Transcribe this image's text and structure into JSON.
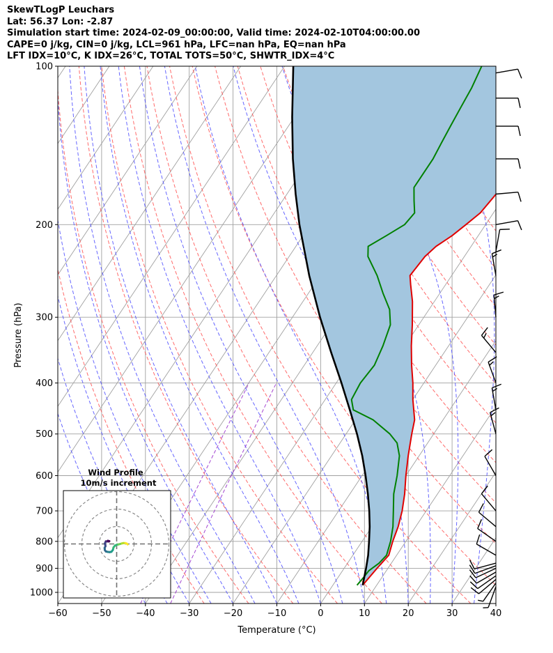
{
  "header": {
    "title": "SkewTLogP Leuchars",
    "location": "Lat: 56.37   Lon: -2.87",
    "simulation": "Simulation start time: 2024-02-09_00:00:00, Valid time: 2024-02-10T04:00:00.00",
    "cape_line": "CAPE=0 j/kg, CIN=0 j/kg, LCL=961 hPa, LFC=nan hPa, EQ=nan hPa",
    "index_line": "LFT IDX=10°C, K IDX=26°C, TOTAL TOTS=50°C, SHWTR_IDX=4°C"
  },
  "chart_data": [
    {
      "type": "line",
      "subtype": "skew-T log-P",
      "xlabel": "Temperature (°C)",
      "ylabel": "Pressure (hPa)",
      "xlim": [
        -60,
        40
      ],
      "ylim": [
        1050,
        100
      ],
      "y_scale": "log",
      "x_ticks": [
        "−60",
        "−50",
        "−40",
        "−30",
        "−20",
        "−10",
        "0",
        "10",
        "20",
        "30",
        "40"
      ],
      "y_ticks": [
        "1000",
        "900",
        "800",
        "700",
        "600",
        "500",
        "400",
        "300",
        "200",
        "100"
      ],
      "grid": true,
      "series": [
        {
          "role": "temperature",
          "color": "#e00000",
          "points": [
            [
              969,
              6.8
            ],
            [
              900,
              7.5
            ],
            [
              850,
              8.2
            ],
            [
              800,
              7.0
            ],
            [
              750,
              6.0
            ],
            [
              700,
              4.5
            ],
            [
              650,
              2.5
            ],
            [
              600,
              0.0
            ],
            [
              550,
              -2.5
            ],
            [
              500,
              -5.0
            ],
            [
              470,
              -6.5
            ],
            [
              430,
              -10.0
            ],
            [
              400,
              -12.5
            ],
            [
              370,
              -15.5
            ],
            [
              340,
              -18.5
            ],
            [
              310,
              -21.5
            ],
            [
              280,
              -25.0
            ],
            [
              260,
              -28.0
            ],
            [
              250,
              -29.5
            ],
            [
              230,
              -29.0
            ],
            [
              220,
              -28.0
            ],
            [
              210,
              -26.0
            ],
            [
              200,
              -24.5
            ],
            [
              190,
              -23.0
            ],
            [
              180,
              -22.5
            ],
            [
              170,
              -22.0
            ],
            [
              160,
              -21.5
            ],
            [
              150,
              -21.0
            ],
            [
              140,
              -21.5
            ],
            [
              130,
              -21.5
            ],
            [
              120,
              -21.5
            ],
            [
              110,
              -21.5
            ],
            [
              100,
              -21.5
            ]
          ]
        },
        {
          "role": "dewpoint",
          "color": "#008000",
          "points": [
            [
              969,
              5.5
            ],
            [
              940,
              5.8
            ],
            [
              910,
              6.0
            ],
            [
              880,
              7.2
            ],
            [
              850,
              7.7
            ],
            [
              800,
              6.5
            ],
            [
              750,
              4.8
            ],
            [
              700,
              2.5
            ],
            [
              650,
              0.0
            ],
            [
              600,
              -2.0
            ],
            [
              550,
              -4.5
            ],
            [
              520,
              -7.0
            ],
            [
              500,
              -10.0
            ],
            [
              470,
              -16.0
            ],
            [
              450,
              -22.0
            ],
            [
              430,
              -24.0
            ],
            [
              400,
              -24.5
            ],
            [
              370,
              -24.0
            ],
            [
              340,
              -25.0
            ],
            [
              310,
              -26.5
            ],
            [
              290,
              -29.0
            ],
            [
              270,
              -33.0
            ],
            [
              250,
              -37.0
            ],
            [
              230,
              -42.0
            ],
            [
              220,
              -43.5
            ],
            [
              210,
              -41.0
            ],
            [
              200,
              -38.5
            ],
            [
              190,
              -38.0
            ],
            [
              180,
              -40.0
            ],
            [
              170,
              -42.0
            ],
            [
              160,
              -42.0
            ],
            [
              150,
              -42.0
            ],
            [
              140,
              -42.5
            ],
            [
              130,
              -43.0
            ],
            [
              120,
              -43.5
            ],
            [
              110,
              -44.0
            ],
            [
              100,
              -45.0
            ]
          ]
        },
        {
          "role": "parcel",
          "color": "#000000",
          "points": [
            [
              969,
              6.8
            ],
            [
              900,
              5.0
            ],
            [
              850,
              3.5
            ],
            [
              800,
              1.6
            ],
            [
              750,
              -0.5
            ],
            [
              700,
              -3.0
            ],
            [
              650,
              -5.9
            ],
            [
              600,
              -9.2
            ],
            [
              550,
              -13.0
            ],
            [
              500,
              -17.5
            ],
            [
              450,
              -22.8
            ],
            [
              400,
              -28.8
            ],
            [
              350,
              -35.8
            ],
            [
              300,
              -43.7
            ],
            [
              250,
              -52.5
            ],
            [
              200,
              -62.5
            ],
            [
              175,
              -68.0
            ],
            [
              150,
              -74.0
            ],
            [
              125,
              -80.5
            ],
            [
              100,
              -88.0
            ]
          ]
        }
      ],
      "background_lines": {
        "dry_adiabat_color": "#ff5050",
        "moist_adiabat_color": "#4b4bff",
        "isotherm_color": "#a0a0a0",
        "mixing_ratio_color": "#9932cc",
        "cape_fill_color": "#a3c6df"
      },
      "wind_barbs": [
        {
          "p": 975,
          "speed_kt": 5,
          "dir": 200
        },
        {
          "p": 960,
          "speed_kt": 8,
          "dir": 215
        },
        {
          "p": 945,
          "speed_kt": 10,
          "dir": 230
        },
        {
          "p": 930,
          "speed_kt": 10,
          "dir": 235
        },
        {
          "p": 915,
          "speed_kt": 12,
          "dir": 240
        },
        {
          "p": 900,
          "speed_kt": 13,
          "dir": 245
        },
        {
          "p": 890,
          "speed_kt": 13,
          "dir": 250
        },
        {
          "p": 880,
          "speed_kt": 12,
          "dir": 255
        },
        {
          "p": 850,
          "speed_kt": 10,
          "dir": 300
        },
        {
          "p": 800,
          "speed_kt": 10,
          "dir": 305
        },
        {
          "p": 750,
          "speed_kt": 10,
          "dir": 310
        },
        {
          "p": 700,
          "speed_kt": 10,
          "dir": 320
        },
        {
          "p": 600,
          "speed_kt": 10,
          "dir": 330
        },
        {
          "p": 500,
          "speed_kt": 15,
          "dir": 345
        },
        {
          "p": 450,
          "speed_kt": 15,
          "dir": 350
        },
        {
          "p": 400,
          "speed_kt": 15,
          "dir": 340
        },
        {
          "p": 350,
          "speed_kt": 15,
          "dir": 320
        },
        {
          "p": 300,
          "speed_kt": 15,
          "dir": 355
        },
        {
          "p": 250,
          "speed_kt": 15,
          "dir": 350
        },
        {
          "p": 225,
          "speed_kt": 10,
          "dir": 10
        },
        {
          "p": 200,
          "speed_kt": 10,
          "dir": 80
        },
        {
          "p": 175,
          "speed_kt": 10,
          "dir": 85
        },
        {
          "p": 150,
          "speed_kt": 10,
          "dir": 90
        },
        {
          "p": 130,
          "speed_kt": 10,
          "dir": 90
        },
        {
          "p": 115,
          "speed_kt": 10,
          "dir": 90
        },
        {
          "p": 103,
          "speed_kt": 12,
          "dir": 80
        }
      ]
    },
    {
      "type": "line",
      "subtype": "hodograph",
      "title": "Wind Profile\n10m/s increment",
      "ring_increment_ms": 10,
      "rings": 3,
      "points": [
        [
          6.3,
          -0.3
        ],
        [
          5.8,
          0.2
        ],
        [
          5.0,
          0.5
        ],
        [
          4.0,
          0.5
        ],
        [
          3.0,
          0.3
        ],
        [
          2.0,
          0.0
        ],
        [
          1.0,
          -0.3
        ],
        [
          0.0,
          -0.5
        ],
        [
          -1.0,
          -1.0
        ],
        [
          -1.8,
          -2.0
        ],
        [
          -2.2,
          -3.5
        ],
        [
          -3.0,
          -4.5
        ],
        [
          -4.0,
          -4.7
        ],
        [
          -5.0,
          -4.6
        ],
        [
          -6.2,
          -4.3
        ],
        [
          -6.8,
          -3.5
        ],
        [
          -6.9,
          -2.3
        ],
        [
          -6.4,
          -1.2
        ],
        [
          -6.8,
          0.2
        ],
        [
          -6.2,
          1.5
        ],
        [
          -5.4,
          1.4
        ],
        [
          -5.0,
          1.8
        ],
        [
          -4.5,
          1.4
        ],
        [
          -4.2,
          1.6
        ]
      ]
    }
  ]
}
